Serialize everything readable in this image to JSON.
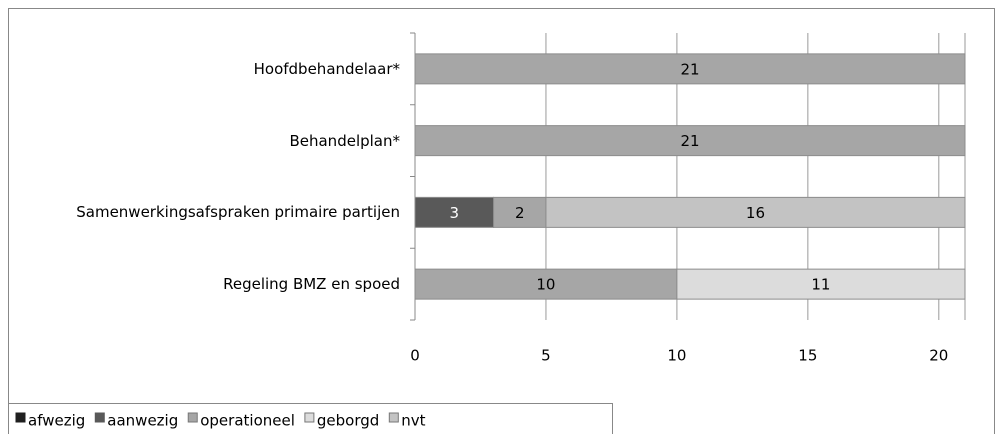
{
  "chart_data": {
    "type": "bar",
    "orientation": "horizontal",
    "stacked": true,
    "categories": [
      "Hoofdbehandelaar*",
      "Behandelplan*",
      "Samenwerkingsafspraken primaire partijen",
      "Regeling BMZ en spoed"
    ],
    "series": [
      {
        "name": "afwezig",
        "color": "#1f1f1f",
        "values": [
          null,
          null,
          null,
          null
        ]
      },
      {
        "name": "aanwezig",
        "color": "#595959",
        "values": [
          null,
          null,
          3,
          null
        ]
      },
      {
        "name": "operationeel",
        "color": "#a6a6a6",
        "values": [
          21,
          21,
          2,
          10
        ]
      },
      {
        "name": "geborgd",
        "color": "#dcdcdc",
        "values": [
          null,
          null,
          null,
          11
        ]
      },
      {
        "name": "nvt",
        "color": "#c3c3c3",
        "values": [
          null,
          null,
          16,
          null
        ]
      }
    ],
    "xlim": [
      0,
      21
    ],
    "xticks": [
      0,
      5,
      10,
      15,
      20
    ],
    "grid": true,
    "legend": "bottom"
  }
}
